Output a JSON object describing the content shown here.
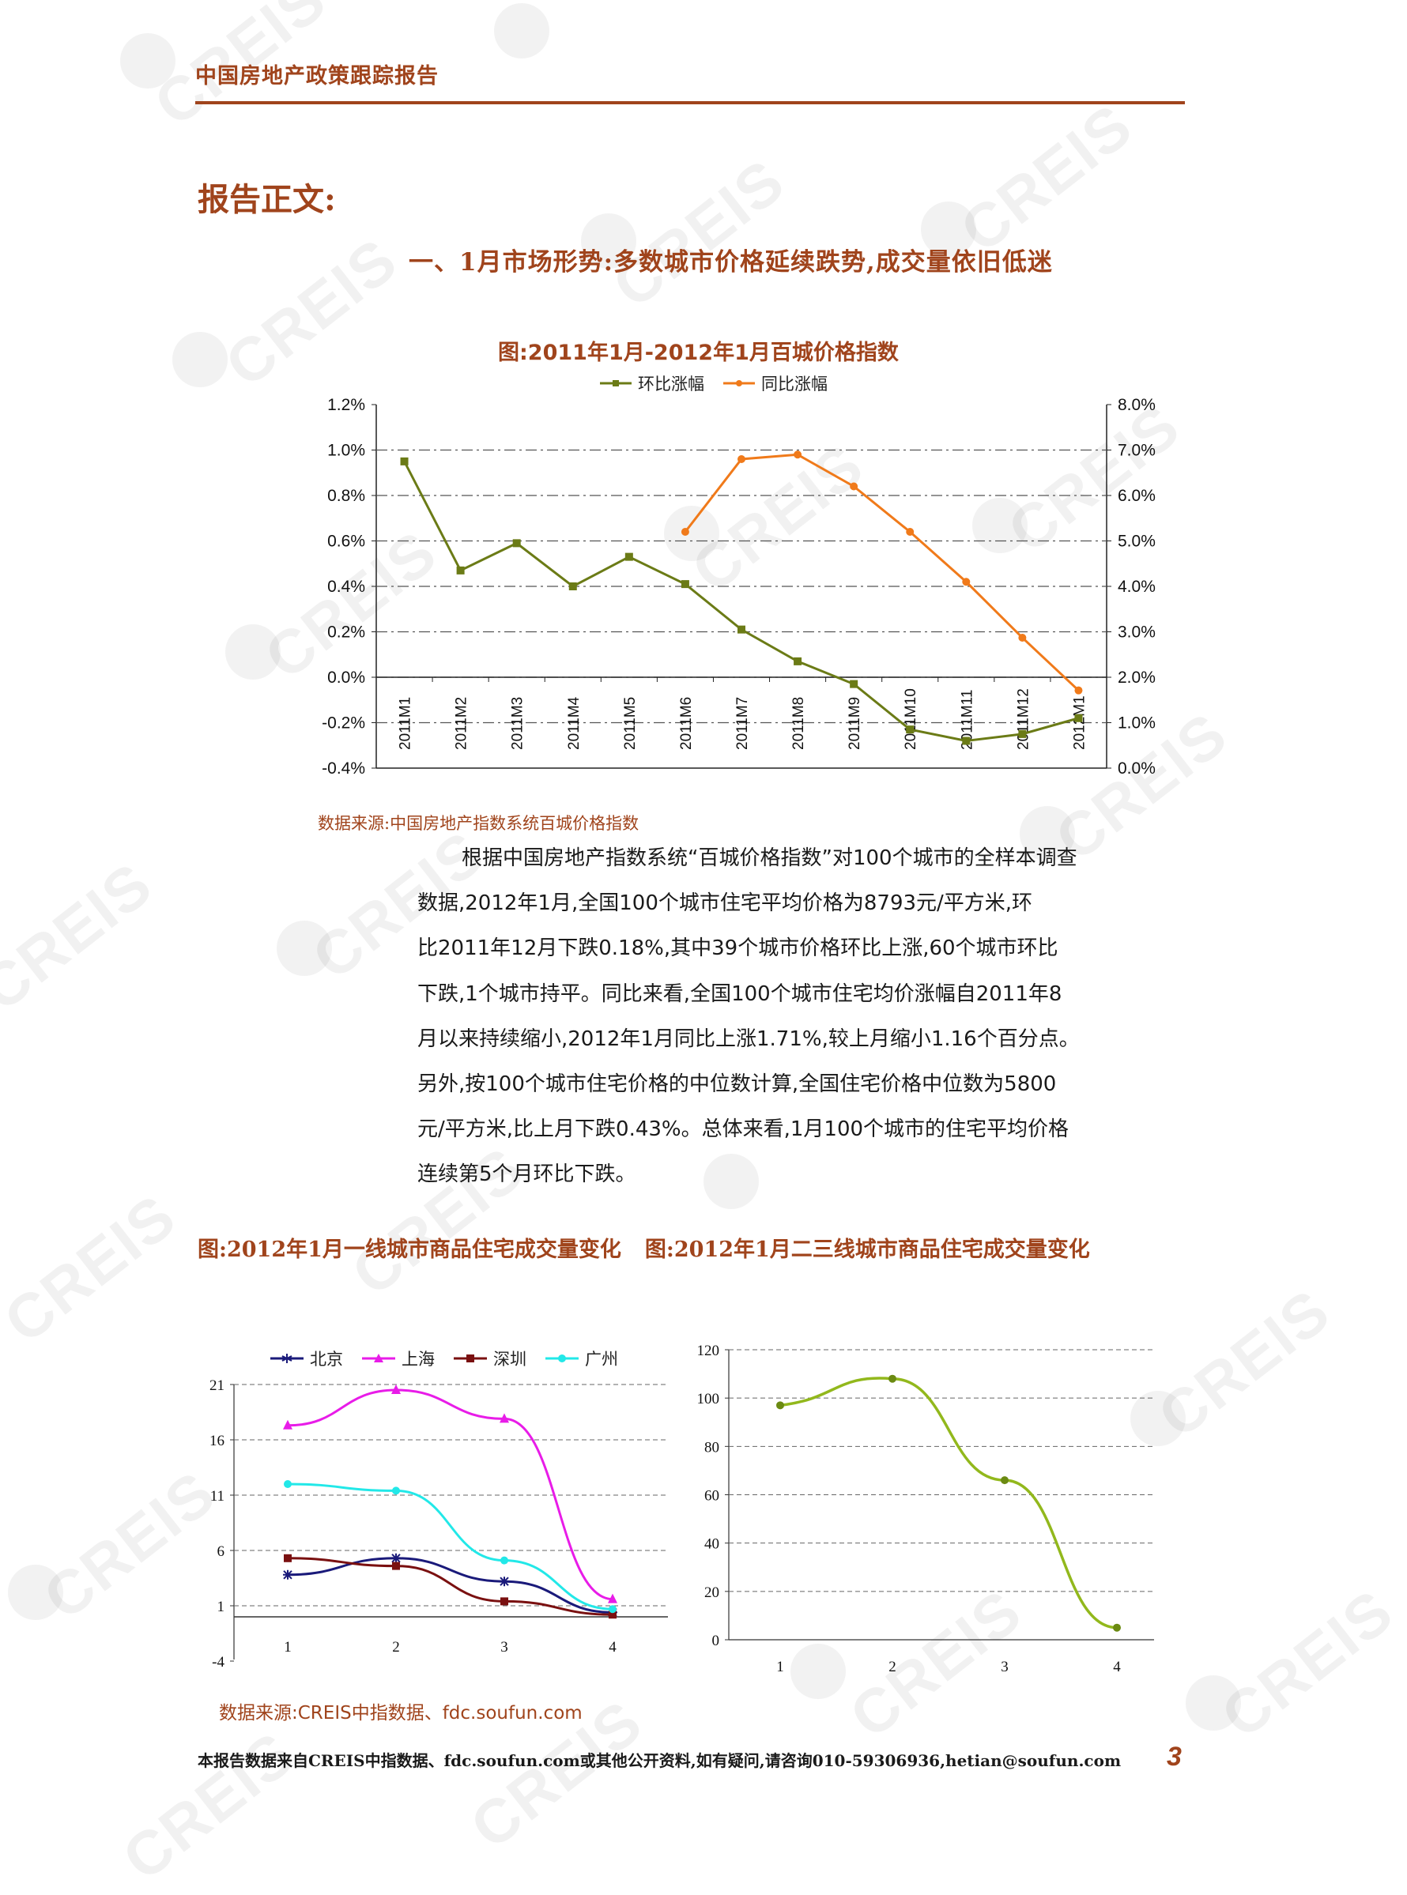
{
  "header": {
    "title": "中国房地产政策跟踪报告"
  },
  "watermark": {
    "text": "CREIS"
  },
  "section_heading": "报告正文:",
  "subsection_heading": "一、1月市场形势:多数城市价格延续跌势,成交量依旧低迷",
  "figure1": {
    "title": "图:2011年1月-2012年1月百城价格指数",
    "source": "数据来源:中国房地产指数系统百城价格指数",
    "legend": [
      "环比涨幅",
      "同比涨幅"
    ],
    "colors": {
      "mom": "#6b7b16",
      "yoy": "#f07a1a"
    }
  },
  "paragraph": [
    "根据中国房地产指数系统“百城价格指数”对100个城市的全样本调查",
    "数据,2012年1月,全国100个城市住宅平均价格为8793元/平方米,环",
    "比2011年12月下跌0.18%,其中39个城市价格环比上涨,60个城市环比",
    "下跌,1个城市持平。同比来看,全国100个城市住宅均价涨幅自2011年8",
    "月以来持续缩小,2012年1月同比上涨1.71%,较上月缩小1.16个百分点。",
    "另外,按100个城市住宅价格的中位数计算,全国住宅价格中位数为5800",
    "元/平方米,比上月下跌0.43%。总体来看,1月100个城市的住宅平均价格",
    "连续第5个月环比下跌。"
  ],
  "figure2_caption": "图:2012年1月一线城市商品住宅成交量变化",
  "figure3_caption": "图:2012年1月二三线城市商品住宅成交量变化",
  "figure23_source": "数据来源:CREIS中指数据、fdc.soufun.com",
  "figure2": {
    "legend": [
      "北京",
      "上海",
      "深圳",
      "广州"
    ],
    "colors": [
      "#1a1a7a",
      "#e81ce8",
      "#7a1010",
      "#22e8e8"
    ]
  },
  "footer": {
    "text": "本报告数据来自CREIS中指数据、fdc.soufun.com或其他公开资料,如有疑问,请咨询010-59306936,hetian@soufun.com",
    "page_number": "3"
  },
  "chart_data": [
    {
      "type": "line",
      "title": "图:2011年1月-2012年1月百城价格指数",
      "categories": [
        "2011M1",
        "2011M2",
        "2011M3",
        "2011M4",
        "2011M5",
        "2011M6",
        "2011M7",
        "2011M8",
        "2011M9",
        "2011M10",
        "2011M11",
        "2011M12",
        "2012M1"
      ],
      "series": [
        {
          "name": "环比涨幅",
          "axis": "left",
          "values": [
            0.95,
            0.47,
            0.59,
            0.4,
            0.53,
            0.41,
            0.21,
            0.07,
            -0.03,
            -0.23,
            -0.28,
            -0.25,
            -0.18
          ]
        },
        {
          "name": "同比涨幅",
          "axis": "right",
          "values": [
            null,
            null,
            null,
            null,
            null,
            5.2,
            6.8,
            6.9,
            6.2,
            5.2,
            4.1,
            2.87,
            1.71
          ]
        }
      ],
      "ylim_left": [
        -0.4,
        1.2
      ],
      "ylim_right": [
        0.0,
        8.0
      ],
      "yticks_left": [
        "1.2%",
        "1.0%",
        "0.8%",
        "0.6%",
        "0.4%",
        "0.2%",
        "0.0%",
        "-0.2%",
        "-0.4%"
      ],
      "yticks_right": [
        "8.0%",
        "7.0%",
        "6.0%",
        "5.0%",
        "4.0%",
        "3.0%",
        "2.0%",
        "1.0%",
        "0.0%"
      ],
      "legend_position": "top",
      "grid": true
    },
    {
      "type": "line",
      "categories": [
        "1",
        "2",
        "3",
        "4"
      ],
      "series": [
        {
          "name": "北京",
          "values": [
            3.8,
            5.3,
            3.2,
            0.4
          ]
        },
        {
          "name": "上海",
          "values": [
            17.3,
            20.5,
            17.9,
            1.6
          ]
        },
        {
          "name": "深圳",
          "values": [
            5.3,
            4.6,
            1.4,
            0.2
          ]
        },
        {
          "name": "广州",
          "values": [
            12.0,
            11.4,
            5.1,
            0.7
          ]
        }
      ],
      "ylim": [
        -4,
        21
      ],
      "yticks": [
        "21",
        "16",
        "11",
        "6",
        "1",
        "-4"
      ],
      "legend_position": "top",
      "grid": true
    },
    {
      "type": "line",
      "categories": [
        "1",
        "2",
        "3",
        "4"
      ],
      "series": [
        {
          "values": [
            97,
            108,
            66,
            5
          ]
        }
      ],
      "ylim": [
        0,
        120
      ],
      "yticks": [
        "120",
        "100",
        "80",
        "60",
        "40",
        "20",
        "0"
      ],
      "color": "#92b81c",
      "grid": true
    }
  ]
}
